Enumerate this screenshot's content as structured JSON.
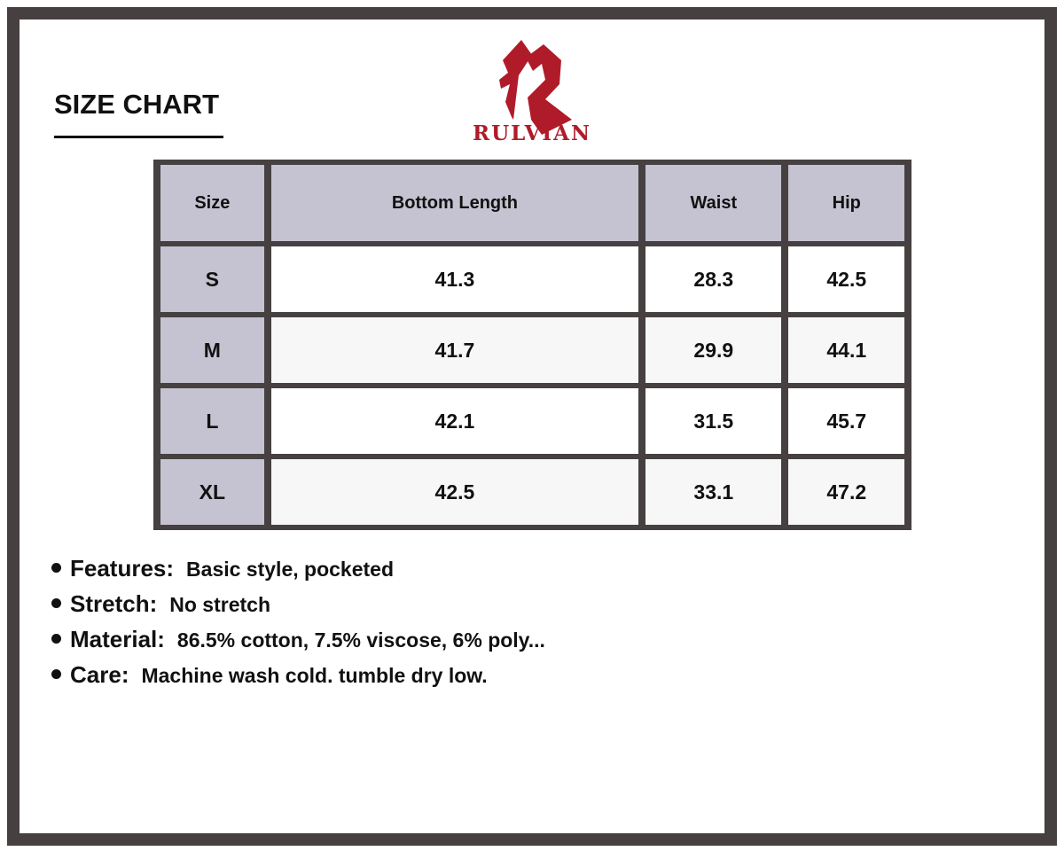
{
  "header": {
    "title": "SIZE CHART",
    "brand": "RULVIAN",
    "brand_color": "#b01b2a",
    "logo_icon": "rulvian-r-logo"
  },
  "table": {
    "columns": [
      "Size",
      "Bottom Length",
      "Waist",
      "Hip"
    ],
    "rows": [
      [
        "S",
        "41.3",
        "28.3",
        "42.5"
      ],
      [
        "M",
        "41.7",
        "29.9",
        "44.1"
      ],
      [
        "L",
        "42.1",
        "31.5",
        "45.7"
      ],
      [
        "XL",
        "42.5",
        "33.1",
        "47.2"
      ]
    ]
  },
  "notes": [
    {
      "label": "Features:",
      "value": "Basic style, pocketed"
    },
    {
      "label": "Stretch:",
      "value": "No stretch"
    },
    {
      "label": "Material:",
      "value": "86.5% cotton, 7.5% viscose, 6% poly..."
    },
    {
      "label": "Care:",
      "value": "Machine wash cold. tumble dry low."
    }
  ]
}
